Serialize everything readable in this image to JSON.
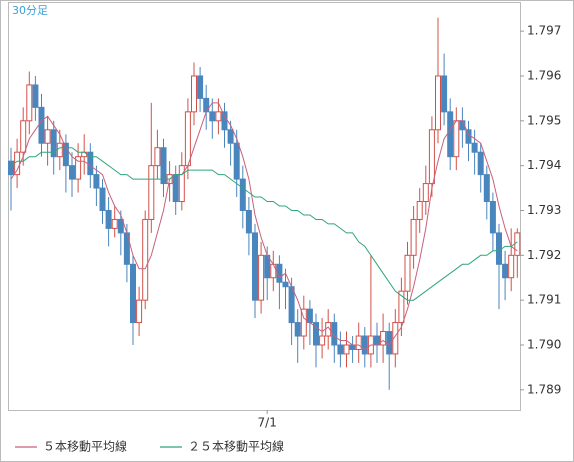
{
  "chart_data": {
    "type": "candlestick",
    "timeframe": "30分足",
    "ylim": [
      1.78855,
      1.79765
    ],
    "yticks": [
      1.789,
      {
        "value": 1.79,
        "label": "1.790"
      },
      1.791,
      1.792,
      1.793,
      1.794,
      1.795,
      1.796,
      1.797
    ],
    "categories": [
      null,
      null,
      null,
      null,
      null,
      null,
      null,
      null,
      null,
      null,
      null,
      null,
      null,
      null,
      null,
      null,
      null,
      null,
      null,
      null,
      null,
      null,
      null,
      null,
      null,
      null,
      null,
      null,
      null,
      null,
      null,
      null,
      null,
      null,
      null,
      null,
      null,
      null,
      null,
      null,
      null,
      null,
      "7/1",
      null,
      null,
      null,
      null,
      null,
      null,
      null,
      null,
      null,
      null,
      null,
      null,
      null,
      null,
      null,
      null,
      null,
      null,
      null,
      null,
      null,
      null,
      null,
      null,
      null,
      null,
      null,
      null,
      null,
      null,
      null,
      null,
      null,
      null,
      null,
      null,
      null,
      null,
      null,
      null,
      null
    ],
    "up_color": "#d2504a",
    "down_color": "#4a86be",
    "open": [
      1.7941,
      1.7938,
      1.7943,
      1.795,
      1.7958,
      1.7953,
      1.7945,
      1.7948,
      1.7942,
      1.7945,
      1.794,
      1.7937,
      1.7942,
      1.7943,
      1.7938,
      1.7935,
      1.793,
      1.7926,
      1.7928,
      1.7925,
      1.7918,
      1.7905,
      1.791,
      1.7928,
      1.794,
      1.7944,
      1.7936,
      1.7938,
      1.7932,
      1.794,
      1.7952,
      1.796,
      1.7955,
      1.7952,
      1.795,
      1.7952,
      1.7948,
      1.7945,
      1.7937,
      1.793,
      1.7925,
      1.791,
      1.792,
      1.7915,
      1.7918,
      1.7914,
      1.7913,
      1.7905,
      1.7902,
      1.7908,
      1.7905,
      1.79,
      1.7902,
      1.7905,
      1.79,
      1.7898,
      1.79,
      1.7899,
      1.7902,
      1.7898,
      1.7902,
      1.79,
      1.7903,
      1.7898,
      1.7905,
      1.7912,
      1.792,
      1.7928,
      1.7932,
      1.7936,
      1.7948,
      1.796,
      1.7952,
      1.7942,
      1.795,
      1.7948,
      1.7945,
      1.7943,
      1.7938,
      1.7932,
      1.7925,
      1.7918,
      1.7915,
      1.792
    ],
    "high": [
      1.7944,
      1.7946,
      1.7953,
      1.7961,
      1.796,
      1.7956,
      1.7951,
      1.795,
      1.7948,
      1.7947,
      1.7943,
      1.7945,
      1.7947,
      1.7945,
      1.794,
      1.7937,
      1.7933,
      1.7931,
      1.793,
      1.7927,
      1.792,
      1.7913,
      1.793,
      1.7954,
      1.7948,
      1.7946,
      1.7941,
      1.794,
      1.7943,
      1.7955,
      1.7963,
      1.7962,
      1.7958,
      1.7955,
      1.7955,
      1.7954,
      1.795,
      1.7948,
      1.794,
      1.7933,
      1.7927,
      1.7923,
      1.7922,
      1.7921,
      1.792,
      1.7917,
      1.7915,
      1.7908,
      1.7911,
      1.791,
      1.7907,
      1.7906,
      1.7908,
      1.7907,
      1.7903,
      1.7903,
      1.7902,
      1.7905,
      1.7904,
      1.792,
      1.7905,
      1.7907,
      1.7905,
      1.7908,
      1.7915,
      1.7923,
      1.7931,
      1.7935,
      1.794,
      1.7951,
      1.7973,
      1.7965,
      1.7955,
      1.7953,
      1.7953,
      1.795,
      1.7948,
      1.7945,
      1.794,
      1.7934,
      1.7927,
      1.7921,
      1.7926,
      1.7926
    ],
    "low": [
      1.793,
      1.7935,
      1.794,
      1.7947,
      1.795,
      1.7942,
      1.794,
      1.7938,
      1.7939,
      1.7934,
      1.7933,
      1.7934,
      1.7938,
      1.7935,
      1.7931,
      1.7927,
      1.7922,
      1.7924,
      1.792,
      1.7914,
      1.79,
      1.7902,
      1.7908,
      1.7925,
      1.7937,
      1.7933,
      1.7932,
      1.7929,
      1.793,
      1.7937,
      1.7949,
      1.7952,
      1.7948,
      1.7946,
      1.7947,
      1.7944,
      1.794,
      1.7933,
      1.7926,
      1.792,
      1.7906,
      1.7907,
      1.791,
      1.7912,
      1.7908,
      1.7908,
      1.79,
      1.7896,
      1.7899,
      1.79,
      1.7895,
      1.7897,
      1.7899,
      1.7896,
      1.7895,
      1.7895,
      1.7896,
      1.7896,
      1.7895,
      1.7895,
      1.7896,
      1.7896,
      1.789,
      1.7895,
      1.7902,
      1.7909,
      1.7917,
      1.7925,
      1.7929,
      1.7933,
      1.7945,
      1.7949,
      1.7939,
      1.7939,
      1.7944,
      1.7941,
      1.7938,
      1.7934,
      1.7928,
      1.7921,
      1.7908,
      1.791,
      1.7912,
      1.7915
    ],
    "close": [
      1.7938,
      1.7943,
      1.795,
      1.7958,
      1.7953,
      1.7945,
      1.7948,
      1.7942,
      1.7945,
      1.794,
      1.7937,
      1.7942,
      1.7943,
      1.7938,
      1.7935,
      1.793,
      1.7926,
      1.7928,
      1.7925,
      1.7918,
      1.7905,
      1.791,
      1.7928,
      1.794,
      1.7944,
      1.7936,
      1.7938,
      1.7932,
      1.794,
      1.7952,
      1.796,
      1.7955,
      1.7952,
      1.795,
      1.7952,
      1.7948,
      1.7945,
      1.7937,
      1.793,
      1.7925,
      1.791,
      1.792,
      1.7915,
      1.7918,
      1.7914,
      1.7913,
      1.7905,
      1.7902,
      1.7908,
      1.7905,
      1.79,
      1.7902,
      1.7905,
      1.79,
      1.7898,
      1.79,
      1.7899,
      1.7902,
      1.7898,
      1.7902,
      1.79,
      1.7903,
      1.7898,
      1.7905,
      1.7912,
      1.792,
      1.7928,
      1.7932,
      1.7936,
      1.7948,
      1.796,
      1.7952,
      1.7942,
      1.795,
      1.7948,
      1.7945,
      1.7943,
      1.7938,
      1.7932,
      1.7925,
      1.7918,
      1.7915,
      1.792,
      1.7925
    ],
    "series": [
      {
        "name": "５本移動平均線",
        "color": "#c8607a",
        "values": [
          1.7937,
          1.7939,
          1.7942,
          1.7946,
          1.7948,
          1.795,
          1.7951,
          1.7949,
          1.7947,
          1.7944,
          1.7942,
          1.7941,
          1.7941,
          1.794,
          1.7939,
          1.7938,
          1.7934,
          1.7931,
          1.7929,
          1.7925,
          1.792,
          1.7917,
          1.7917,
          1.792,
          1.7925,
          1.793,
          1.7937,
          1.7938,
          1.7938,
          1.794,
          1.7944,
          1.7948,
          1.7952,
          1.7954,
          1.7954,
          1.7951,
          1.7949,
          1.7946,
          1.7942,
          1.7937,
          1.7929,
          1.7924,
          1.792,
          1.7918,
          1.7915,
          1.7916,
          1.7913,
          1.791,
          1.7906,
          1.7905,
          1.7904,
          1.7903,
          1.7904,
          1.7902,
          1.7901,
          1.7901,
          1.79,
          1.79,
          1.7899,
          1.79,
          1.79,
          1.7901,
          1.79,
          1.7902,
          1.7904,
          1.7908,
          1.7913,
          1.7919,
          1.7926,
          1.7935,
          1.7941,
          1.7946,
          1.7948,
          1.795,
          1.795,
          1.7947,
          1.7946,
          1.7945,
          1.7941,
          1.7937,
          1.7931,
          1.7926,
          1.7922,
          1.7921
        ]
      },
      {
        "name": "２５本移動平均線",
        "color": "#2fa57a",
        "values": [
          1.794,
          1.7941,
          1.7941,
          1.7942,
          1.7942,
          1.7943,
          1.7943,
          1.7943,
          1.7944,
          1.7944,
          1.7944,
          1.7943,
          1.7943,
          1.7942,
          1.7942,
          1.7941,
          1.794,
          1.7939,
          1.7938,
          1.7938,
          1.7937,
          1.7937,
          1.7937,
          1.7937,
          1.7937,
          1.7937,
          1.7937,
          1.7938,
          1.7938,
          1.7939,
          1.7939,
          1.7939,
          1.7939,
          1.7939,
          1.7938,
          1.7938,
          1.7937,
          1.7936,
          1.7935,
          1.7934,
          1.7933,
          1.7933,
          1.7932,
          1.7932,
          1.7931,
          1.7931,
          1.793,
          1.793,
          1.7929,
          1.7929,
          1.7928,
          1.7928,
          1.7927,
          1.7927,
          1.7926,
          1.7925,
          1.7925,
          1.7923,
          1.7922,
          1.792,
          1.7918,
          1.7916,
          1.7914,
          1.7912,
          1.7911,
          1.791,
          1.791,
          1.7911,
          1.7912,
          1.7913,
          1.7914,
          1.7915,
          1.7916,
          1.7917,
          1.7918,
          1.7918,
          1.7919,
          1.792,
          1.792,
          1.7921,
          1.7921,
          1.7922,
          1.7922,
          1.7923
        ]
      }
    ]
  }
}
